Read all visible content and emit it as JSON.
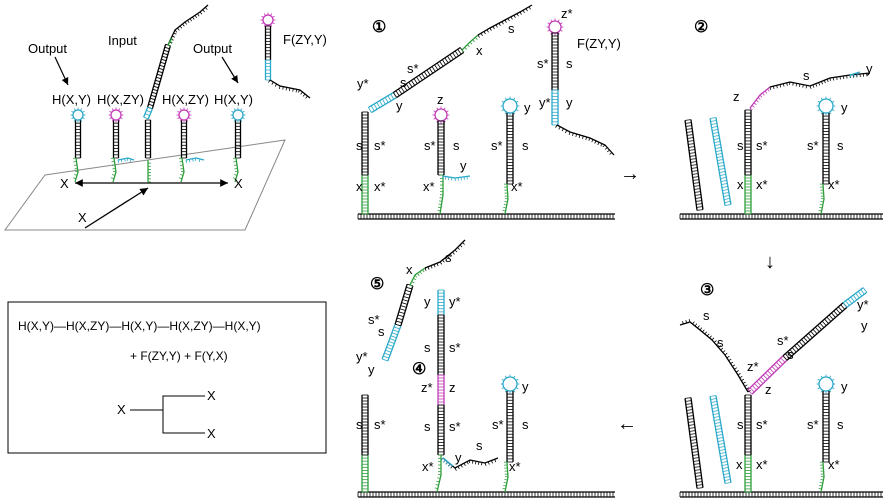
{
  "overview": {
    "output_left": "Output",
    "input": "Input",
    "output_right": "Output",
    "h1": "H(X,Y)",
    "h2": "H(X,ZY)",
    "h3": "H(X,ZY)",
    "h4": "H(X,Y)",
    "fuel": "F(ZY,Y)",
    "x_left": "X",
    "x_right": "X",
    "x_bottom": "X"
  },
  "summary": {
    "chain": "H(X,Y)—H(X,ZY)—H(X,Y)—H(X,ZY)—H(X,Y)",
    "fuels": "+ F(ZY,Y) + F(Y,X)",
    "root": "X",
    "branch_top": "X",
    "branch_bottom": "X"
  },
  "steps": {
    "s1": "①",
    "s2": "②",
    "s3": "③",
    "s4": "④",
    "s5": "⑤"
  },
  "arrows": {
    "right": "→",
    "down": "↓",
    "left": "←"
  },
  "panel1": {
    "fuel_label": "F(ZY,Y)",
    "zstar": "z*",
    "sstar_f": "s*",
    "s_f": "s",
    "ystar_f": "y*",
    "y_f": "y",
    "s_tail": "s",
    "x_tail": "x",
    "sstar_arm": "s*",
    "s_arm": "s",
    "ystar_arm": "y*",
    "y_arm": "y",
    "s_h1": "s",
    "sstar_h1": "s*",
    "x_h1": "x",
    "xstar_h1": "x*",
    "z_h2": "z",
    "sstar_h2": "s*",
    "s_h2": "s",
    "y_h2": "y",
    "xstar_h2": "x*",
    "sstar_h3": "s*",
    "s_h3": "s",
    "y_h3": "y",
    "xstar_h3": "x*"
  },
  "panel2": {
    "z": "z",
    "s": "s",
    "y": "y",
    "s_a": "s",
    "sstar_a": "s*",
    "x": "x",
    "xstar": "x*",
    "sstar_b": "s*",
    "s_b": "s",
    "y_b": "y",
    "xstar_b": "x*"
  },
  "panel3": {
    "s_top": "s",
    "s_mid": "s",
    "ystar": "y*",
    "y": "y",
    "sstar": "s*",
    "s_d": "s",
    "zstar": "z*",
    "z": "z",
    "s_a": "s",
    "sstar_a": "s*",
    "x": "x",
    "xstar": "x*",
    "sstar_b": "s*",
    "s_b": "s",
    "y_b": "y",
    "xstar_b": "x*"
  },
  "panel45": {
    "x_top": "x",
    "s_top": "s",
    "sstar": "s*",
    "s_d": "s",
    "ystar": "y*",
    "y": "y",
    "y_c": "y",
    "ystar_c": "y*",
    "s_c": "s",
    "sstar_c": "s*",
    "zstar": "z*",
    "z": "z",
    "s_c2": "s",
    "sstar_c2": "s*",
    "x_c": "x",
    "xstar_c": "x*",
    "y_loop": "y",
    "s_loop": "s",
    "s_a": "s",
    "sstar_a": "s*",
    "y_r": "y",
    "xstar_r": "x*",
    "s_r": "s",
    "sstar_r": "s*"
  }
}
